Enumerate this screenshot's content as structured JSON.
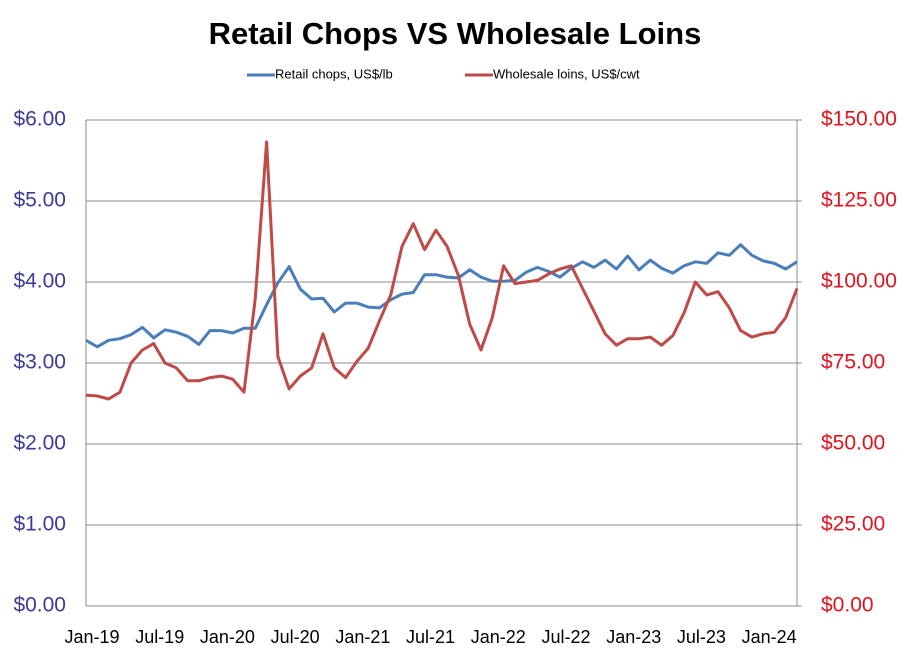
{
  "chart_data": {
    "type": "line",
    "title": "Retail Chops VS Wholesale Loins",
    "categories": [
      "Jan-19",
      null,
      null,
      null,
      null,
      null,
      "Jul-19",
      null,
      null,
      null,
      null,
      null,
      "Jan-20",
      null,
      null,
      null,
      null,
      null,
      "Jul-20",
      null,
      null,
      null,
      null,
      null,
      "Jan-21",
      null,
      null,
      null,
      null,
      null,
      "Jul-21",
      null,
      null,
      null,
      null,
      null,
      "Jan-22",
      null,
      null,
      null,
      null,
      null,
      "Jul-22",
      null,
      null,
      null,
      null,
      null,
      "Jan-23",
      null,
      null,
      null,
      null,
      null,
      "Jul-23",
      null,
      null,
      null,
      null,
      null,
      "Jan-24",
      null,
      null,
      null
    ],
    "series": [
      {
        "name": "Retail chops, US$/lb",
        "color": "#4a7ebb",
        "axis": "y",
        "values": [
          3.28,
          3.2,
          3.28,
          3.3,
          3.35,
          3.44,
          3.31,
          3.41,
          3.38,
          3.33,
          3.23,
          3.4,
          3.4,
          3.37,
          3.43,
          3.43,
          3.72,
          3.99,
          4.19,
          3.91,
          3.79,
          3.8,
          3.63,
          3.74,
          3.74,
          3.69,
          3.68,
          3.78,
          3.85,
          3.87,
          4.09,
          4.09,
          4.06,
          4.05,
          4.15,
          4.06,
          4.01,
          4.01,
          4.02,
          4.12,
          4.18,
          4.13,
          4.06,
          4.17,
          4.25,
          4.18,
          4.27,
          4.16,
          4.32,
          4.15,
          4.27,
          4.17,
          4.11,
          4.2,
          4.25,
          4.23,
          4.36,
          4.33,
          4.46,
          4.33,
          4.26,
          4.23,
          4.16,
          4.25
        ]
      },
      {
        "name": "Wholesale loins, US$/cwt",
        "color": "#be4b48",
        "axis": "y2",
        "values": [
          65.1,
          64.8,
          63.9,
          66.0,
          75,
          79,
          81,
          75,
          73.5,
          69.5,
          69.5,
          70.5,
          71,
          70,
          66,
          95,
          143.2,
          77,
          67,
          71,
          73.5,
          84,
          73.5,
          70.5,
          75.5,
          79.5,
          88,
          96,
          111,
          118,
          110,
          116,
          111,
          102,
          87,
          79,
          89,
          105,
          99.5,
          100,
          100.5,
          102.5,
          104,
          105,
          98,
          91,
          84,
          80.5,
          82.5,
          82.5,
          83,
          80.5,
          83.5,
          90.5,
          100,
          96,
          97,
          92,
          85,
          83,
          84,
          84.5,
          89,
          98
        ]
      }
    ],
    "ylim": [
      0,
      6
    ],
    "yticks": [
      {
        "value": 0,
        "label": "$0.00"
      },
      {
        "value": 1,
        "label": "$1.00"
      },
      {
        "value": 2,
        "label": "$2.00"
      },
      {
        "value": 3,
        "label": "$3.00"
      },
      {
        "value": 4,
        "label": "$4.00"
      },
      {
        "value": 5,
        "label": "$5.00"
      },
      {
        "value": 6,
        "label": "$6.00"
      }
    ],
    "y2lim": [
      0,
      150
    ],
    "y2ticks": [
      {
        "value": 0,
        "label": "$0.00"
      },
      {
        "value": 25,
        "label": "$25.00"
      },
      {
        "value": 50,
        "label": "$50.00"
      },
      {
        "value": 75,
        "label": "$75.00"
      },
      {
        "value": 100,
        "label": "$100.00"
      },
      {
        "value": 125,
        "label": "$125.00"
      },
      {
        "value": 150,
        "label": "$150.00"
      }
    ],
    "grid": true,
    "legend": "top"
  }
}
